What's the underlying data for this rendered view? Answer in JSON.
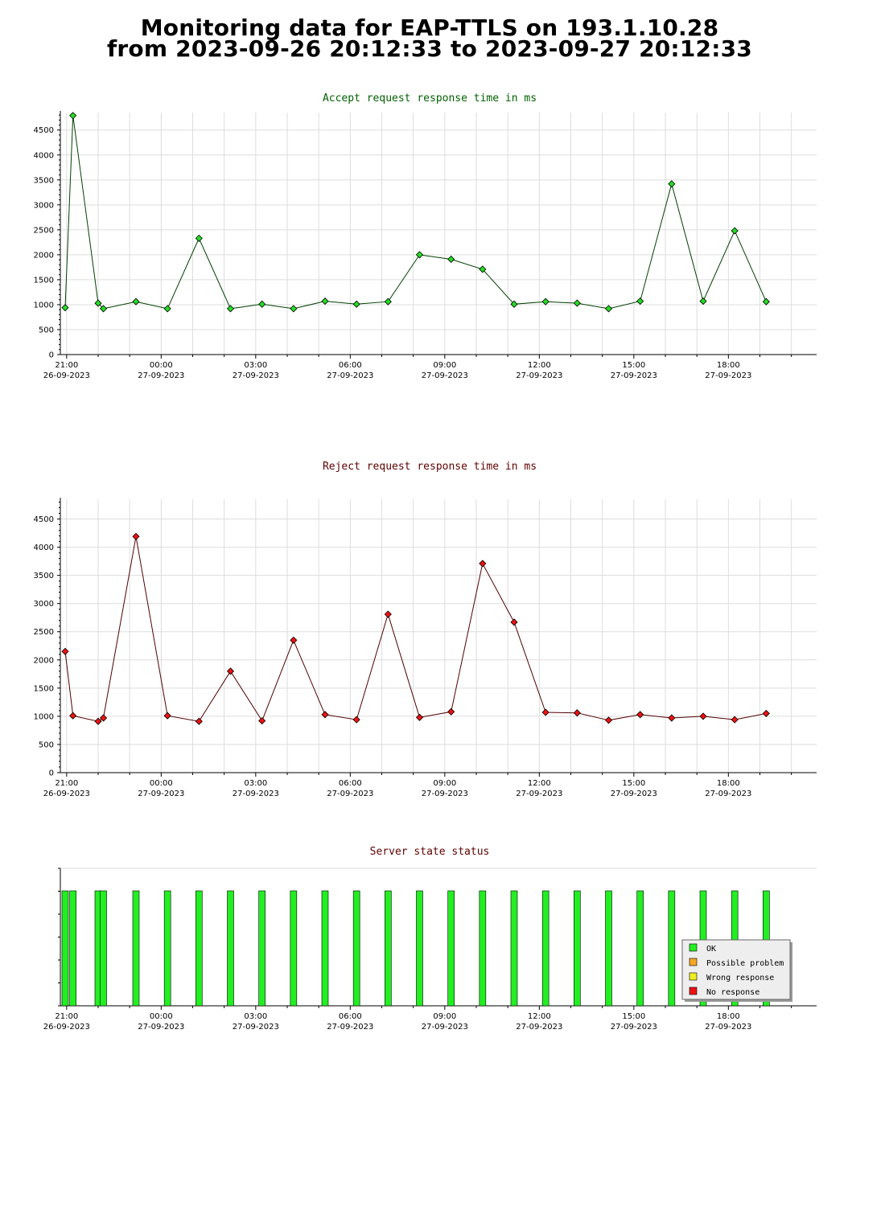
{
  "header": {
    "title_line1": "Monitoring data for EAP-TTLS on 193.1.10.28",
    "title_line2": "from 2023-09-26 20:12:33 to 2023-09-27 20:12:33"
  },
  "colors": {
    "accept_title": "#006000",
    "reject_title": "#600000",
    "status_title": "#600000",
    "accept_line": "#004000",
    "accept_marker": "#22dd22",
    "reject_line": "#500000",
    "reject_marker": "#ee1111",
    "ok": "#22ee22",
    "possible_problem": "#f5a623",
    "wrong_response": "#f0ee22",
    "no_response": "#ee1111",
    "grid": "#dddddd"
  },
  "x_ticks": [
    {
      "time": "21:00",
      "date": "26-09-2023"
    },
    {
      "time": "00:00",
      "date": "27-09-2023"
    },
    {
      "time": "03:00",
      "date": "27-09-2023"
    },
    {
      "time": "06:00",
      "date": "27-09-2023"
    },
    {
      "time": "09:00",
      "date": "27-09-2023"
    },
    {
      "time": "12:00",
      "date": "27-09-2023"
    },
    {
      "time": "15:00",
      "date": "27-09-2023"
    },
    {
      "time": "18:00",
      "date": "27-09-2023"
    }
  ],
  "chart_data": [
    {
      "type": "line",
      "title": "Accept request response time in ms",
      "xlabel": "",
      "ylabel": "",
      "x_range": [
        "2023-09-26 20:48",
        "2023-09-27 20:48"
      ],
      "ylim": [
        0,
        4850
      ],
      "yticks": [
        0,
        500,
        1000,
        1500,
        2000,
        2500,
        3000,
        3500,
        4000,
        4500
      ],
      "grid": true,
      "x": [
        "2023-09-26 20:12",
        "2023-09-26 21:12",
        "2023-09-26 22:00",
        "2023-09-26 22:10",
        "2023-09-26 23:12",
        "2023-09-27 00:12",
        "2023-09-27 01:12",
        "2023-09-27 02:12",
        "2023-09-27 03:12",
        "2023-09-27 04:12",
        "2023-09-27 05:12",
        "2023-09-27 06:12",
        "2023-09-27 07:12",
        "2023-09-27 08:12",
        "2023-09-27 09:12",
        "2023-09-27 10:12",
        "2023-09-27 11:12",
        "2023-09-27 12:12",
        "2023-09-27 13:12",
        "2023-09-27 14:12",
        "2023-09-27 15:12",
        "2023-09-27 16:12",
        "2023-09-27 17:12",
        "2023-09-27 18:12",
        "2023-09-27 19:12"
      ],
      "values": [
        940,
        4790,
        1030,
        920,
        1060,
        920,
        2330,
        920,
        1010,
        920,
        1070,
        1010,
        1060,
        2000,
        1910,
        1710,
        1010,
        1060,
        1030,
        920,
        1070,
        3420,
        1070,
        2480,
        1060
      ]
    },
    {
      "type": "line",
      "title": "Reject request response time in ms",
      "xlabel": "",
      "ylabel": "",
      "x_range": [
        "2023-09-26 20:48",
        "2023-09-27 20:48"
      ],
      "ylim": [
        0,
        4850
      ],
      "yticks": [
        0,
        500,
        1000,
        1500,
        2000,
        2500,
        3000,
        3500,
        4000,
        4500
      ],
      "grid": true,
      "x": [
        "2023-09-26 20:12",
        "2023-09-26 21:12",
        "2023-09-26 22:00",
        "2023-09-26 22:10",
        "2023-09-26 23:12",
        "2023-09-27 00:12",
        "2023-09-27 01:12",
        "2023-09-27 02:12",
        "2023-09-27 03:12",
        "2023-09-27 04:12",
        "2023-09-27 05:12",
        "2023-09-27 06:12",
        "2023-09-27 07:12",
        "2023-09-27 08:12",
        "2023-09-27 09:12",
        "2023-09-27 10:12",
        "2023-09-27 11:12",
        "2023-09-27 12:12",
        "2023-09-27 13:12",
        "2023-09-27 14:12",
        "2023-09-27 15:12",
        "2023-09-27 16:12",
        "2023-09-27 17:12",
        "2023-09-27 18:12",
        "2023-09-27 19:12"
      ],
      "values": [
        2150,
        1010,
        910,
        970,
        4190,
        1010,
        910,
        1800,
        920,
        2350,
        1030,
        940,
        2810,
        980,
        1080,
        3710,
        2670,
        1070,
        1060,
        930,
        1030,
        970,
        1000,
        940,
        1050
      ]
    },
    {
      "type": "bar",
      "title": "Server state status",
      "xlabel": "",
      "ylabel": "",
      "x_range": [
        "2023-09-26 20:48",
        "2023-09-27 20:48"
      ],
      "legend_placement": "bottom-right",
      "legend": [
        "OK",
        "Possible problem",
        "Wrong response",
        "No response"
      ],
      "x": [
        "2023-09-26 20:12",
        "2023-09-26 21:12",
        "2023-09-26 22:00",
        "2023-09-26 22:10",
        "2023-09-26 23:12",
        "2023-09-27 00:12",
        "2023-09-27 01:12",
        "2023-09-27 02:12",
        "2023-09-27 03:12",
        "2023-09-27 04:12",
        "2023-09-27 05:12",
        "2023-09-27 06:12",
        "2023-09-27 07:12",
        "2023-09-27 08:12",
        "2023-09-27 09:12",
        "2023-09-27 10:12",
        "2023-09-27 11:12",
        "2023-09-27 12:12",
        "2023-09-27 13:12",
        "2023-09-27 14:12",
        "2023-09-27 15:12",
        "2023-09-27 16:12",
        "2023-09-27 17:12",
        "2023-09-27 18:12",
        "2023-09-27 19:12"
      ],
      "states": [
        "OK",
        "OK",
        "OK",
        "OK",
        "OK",
        "OK",
        "OK",
        "OK",
        "OK",
        "OK",
        "OK",
        "OK",
        "OK",
        "OK",
        "OK",
        "OK",
        "OK",
        "OK",
        "OK",
        "OK",
        "OK",
        "OK",
        "OK",
        "OK",
        "OK"
      ]
    }
  ]
}
